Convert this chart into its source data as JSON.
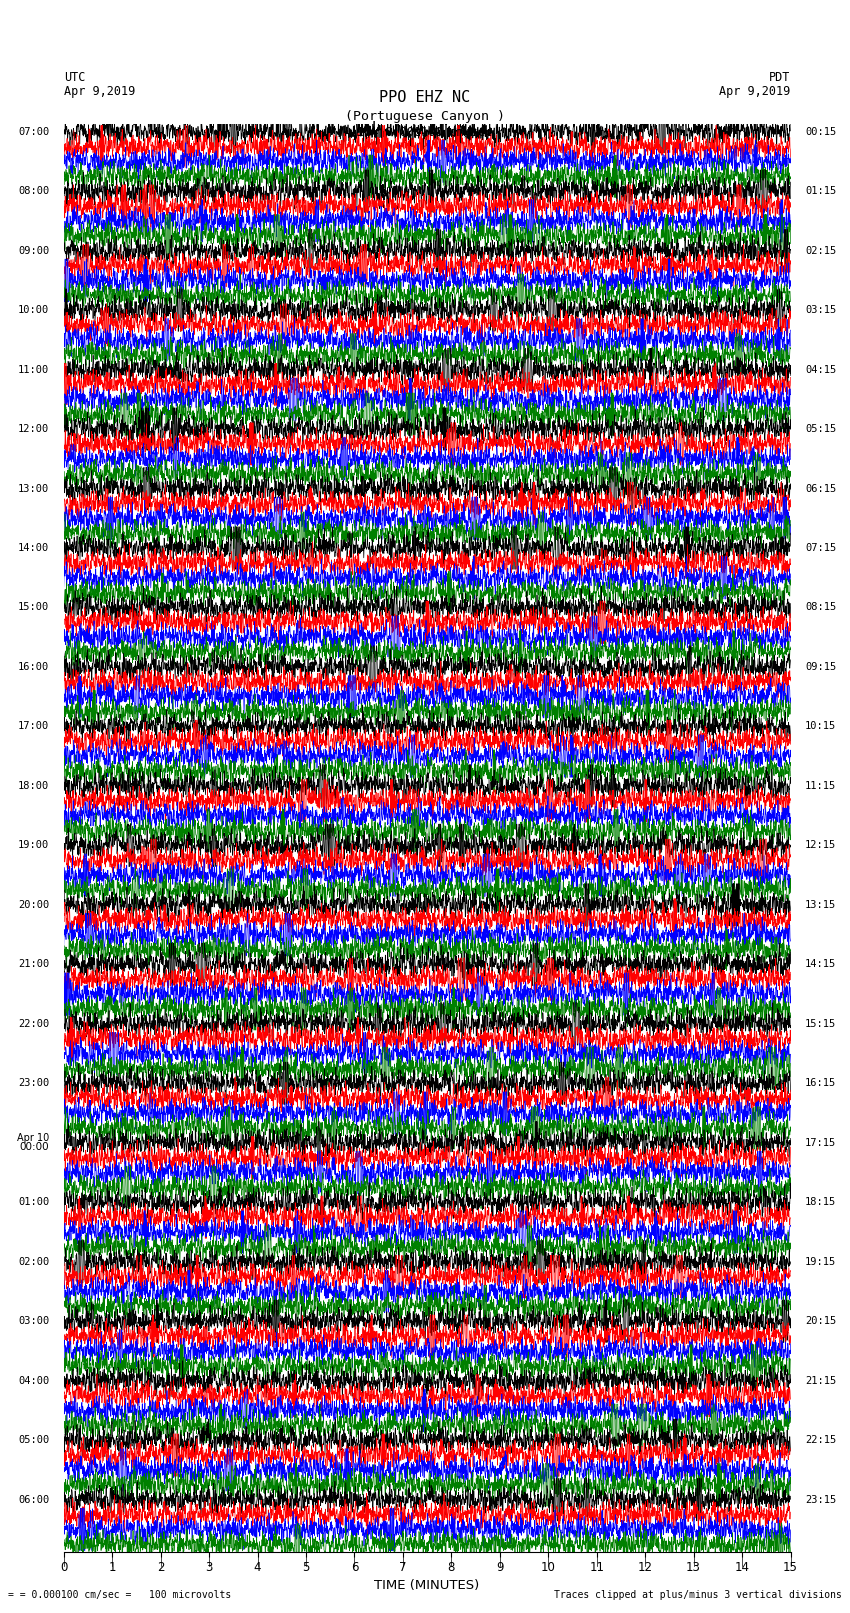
{
  "title_line1": "PPO EHZ NC",
  "title_line2": "(Portuguese Canyon )",
  "scale_label": "I = 0.000100 cm/sec",
  "utc_label": "UTC",
  "pdt_label": "PDT",
  "date_left": "Apr 9,2019",
  "date_right": "Apr 9,2019",
  "xlabel": "TIME (MINUTES)",
  "footer_left": "= 0.000100 cm/sec =   100 microvolts",
  "footer_right": "Traces clipped at plus/minus 3 vertical divisions",
  "left_times": [
    "07:00",
    "08:00",
    "09:00",
    "10:00",
    "11:00",
    "12:00",
    "13:00",
    "14:00",
    "15:00",
    "16:00",
    "17:00",
    "18:00",
    "19:00",
    "20:00",
    "21:00",
    "22:00",
    "23:00",
    "Apr 10\n00:00",
    "01:00",
    "02:00",
    "03:00",
    "04:00",
    "05:00",
    "06:00"
  ],
  "right_times": [
    "00:15",
    "01:15",
    "02:15",
    "03:15",
    "04:15",
    "05:15",
    "06:15",
    "07:15",
    "08:15",
    "09:15",
    "10:15",
    "11:15",
    "12:15",
    "13:15",
    "14:15",
    "15:15",
    "16:15",
    "17:15",
    "18:15",
    "19:15",
    "20:15",
    "21:15",
    "22:15",
    "23:15"
  ],
  "n_rows": 96,
  "n_cols": 3000,
  "xlim": [
    0,
    15
  ],
  "colors_cycle": [
    "#000000",
    "#ff0000",
    "#0000ff",
    "#008000"
  ],
  "bg_color": "#ffffff",
  "amplitude_scale": 0.38,
  "noise_base": 0.12,
  "seed": 42
}
